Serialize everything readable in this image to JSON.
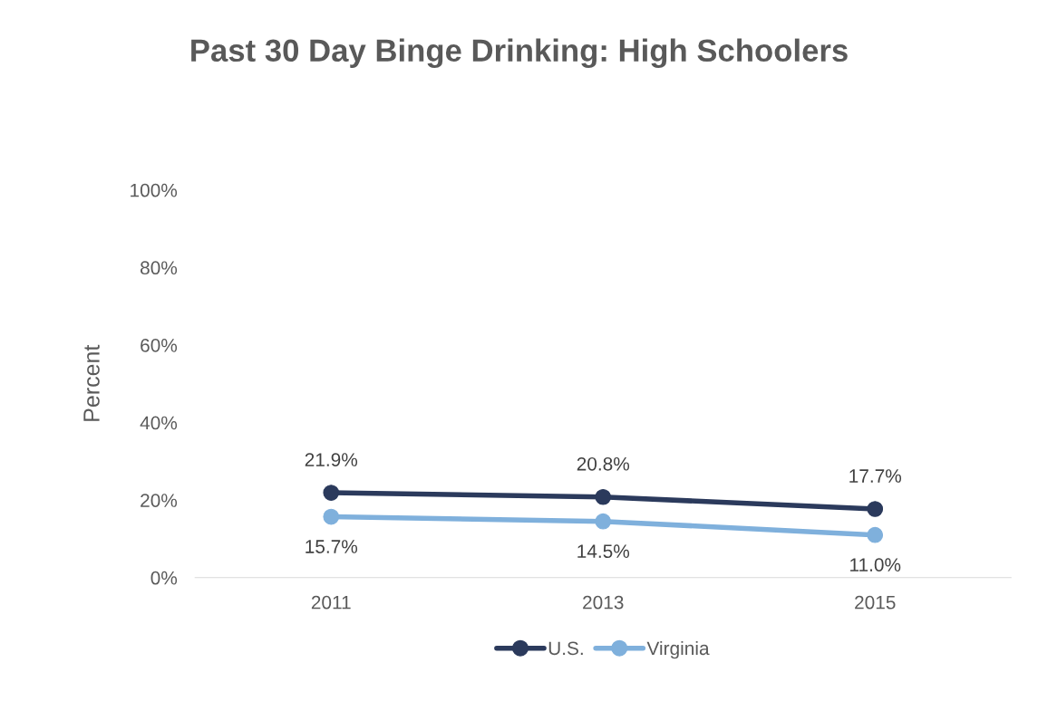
{
  "chart_data": {
    "type": "line",
    "title": "Past 30 Day Binge Drinking: High Schoolers",
    "ylabel": "Percent",
    "categories": [
      "2011",
      "2013",
      "2015"
    ],
    "series": [
      {
        "name": "U.S.",
        "color": "#2b3a5c",
        "values": [
          21.9,
          20.8,
          17.7
        ],
        "value_labels": [
          "21.9%",
          "20.8%",
          "17.7%"
        ]
      },
      {
        "name": "Virginia",
        "color": "#7fb0dc",
        "values": [
          15.7,
          14.5,
          11.0
        ],
        "value_labels": [
          "15.7%",
          "14.5%",
          "11.0%"
        ]
      }
    ],
    "ylim": [
      0,
      100
    ],
    "yticks": [
      {
        "value": 0,
        "label": "0%"
      },
      {
        "value": 20,
        "label": "20%"
      },
      {
        "value": 40,
        "label": "40%"
      },
      {
        "value": 60,
        "label": "60%"
      },
      {
        "value": 80,
        "label": "80%"
      },
      {
        "value": 100,
        "label": "100%"
      }
    ],
    "grid": false,
    "legend": "bottom",
    "marker": "circle",
    "line_style": "solid"
  }
}
